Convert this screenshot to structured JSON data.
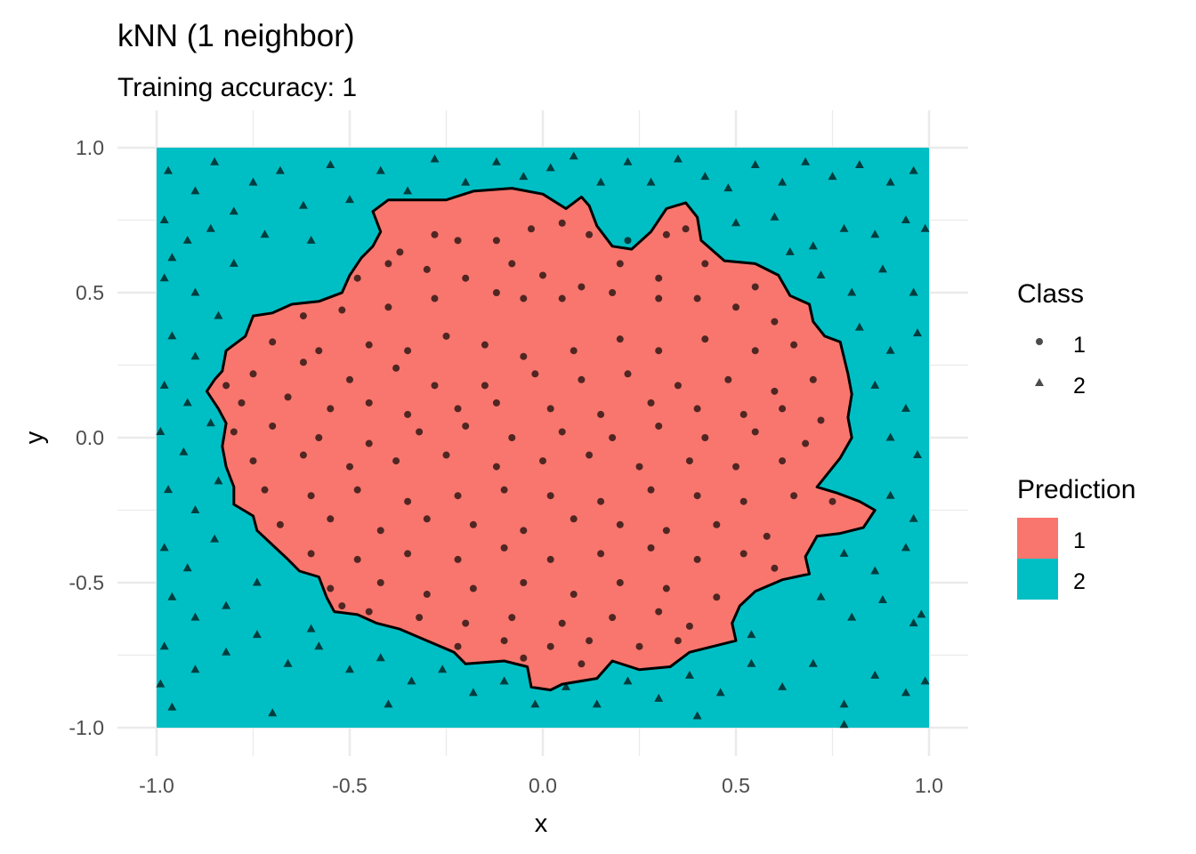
{
  "chart_data": {
    "type": "scatter",
    "title": "kNN (1 neighbor)",
    "subtitle": "Training accuracy: 1",
    "xlabel": "x",
    "ylabel": "y",
    "xlim": [
      -1.0,
      1.0
    ],
    "ylim": [
      -1.0,
      1.0
    ],
    "x_ticks": [
      "-1.0",
      "-0.5",
      "0.0",
      "0.5",
      "1.0"
    ],
    "y_ticks": [
      "-1.0",
      "-0.5",
      "0.0",
      "0.5",
      "1.0"
    ],
    "grid": true,
    "legend_position": "right",
    "colors": {
      "prediction_1": "#F8766D",
      "prediction_2": "#00BFC4",
      "points": "#000000",
      "grid": "#ebebeb"
    },
    "legend": {
      "class": {
        "title": "Class",
        "items": [
          {
            "label": "1",
            "shape": "circle"
          },
          {
            "label": "2",
            "shape": "triangle"
          }
        ]
      },
      "prediction": {
        "title": "Prediction",
        "items": [
          {
            "label": "1",
            "color": "#F8766D"
          },
          {
            "label": "2",
            "color": "#00BFC4"
          }
        ]
      }
    },
    "decision_boundary_class1": [
      [
        -0.44,
        0.78
      ],
      [
        -0.4,
        0.82
      ],
      [
        -0.33,
        0.82
      ],
      [
        -0.25,
        0.82
      ],
      [
        -0.18,
        0.85
      ],
      [
        -0.08,
        0.86
      ],
      [
        0.0,
        0.84
      ],
      [
        0.06,
        0.79
      ],
      [
        0.1,
        0.83
      ],
      [
        0.12,
        0.8
      ],
      [
        0.14,
        0.73
      ],
      [
        0.18,
        0.66
      ],
      [
        0.23,
        0.65
      ],
      [
        0.28,
        0.71
      ],
      [
        0.32,
        0.79
      ],
      [
        0.37,
        0.81
      ],
      [
        0.4,
        0.76
      ],
      [
        0.41,
        0.68
      ],
      [
        0.47,
        0.61
      ],
      [
        0.55,
        0.6
      ],
      [
        0.61,
        0.56
      ],
      [
        0.64,
        0.49
      ],
      [
        0.69,
        0.46
      ],
      [
        0.7,
        0.4
      ],
      [
        0.73,
        0.35
      ],
      [
        0.77,
        0.33
      ],
      [
        0.79,
        0.22
      ],
      [
        0.8,
        0.15
      ],
      [
        0.79,
        0.07
      ],
      [
        0.8,
        0.0
      ],
      [
        0.77,
        -0.07
      ],
      [
        0.71,
        -0.17
      ],
      [
        0.76,
        -0.19
      ],
      [
        0.82,
        -0.22
      ],
      [
        0.86,
        -0.25
      ],
      [
        0.83,
        -0.31
      ],
      [
        0.77,
        -0.33
      ],
      [
        0.71,
        -0.34
      ],
      [
        0.68,
        -0.41
      ],
      [
        0.69,
        -0.47
      ],
      [
        0.62,
        -0.49
      ],
      [
        0.55,
        -0.53
      ],
      [
        0.51,
        -0.58
      ],
      [
        0.49,
        -0.64
      ],
      [
        0.5,
        -0.7
      ],
      [
        0.44,
        -0.72
      ],
      [
        0.38,
        -0.74
      ],
      [
        0.33,
        -0.79
      ],
      [
        0.25,
        -0.8
      ],
      [
        0.18,
        -0.77
      ],
      [
        0.14,
        -0.83
      ],
      [
        0.05,
        -0.85
      ],
      [
        0.02,
        -0.87
      ],
      [
        -0.03,
        -0.86
      ],
      [
        -0.04,
        -0.79
      ],
      [
        -0.1,
        -0.77
      ],
      [
        -0.2,
        -0.78
      ],
      [
        -0.23,
        -0.74
      ],
      [
        -0.3,
        -0.7
      ],
      [
        -0.37,
        -0.66
      ],
      [
        -0.43,
        -0.64
      ],
      [
        -0.48,
        -0.61
      ],
      [
        -0.54,
        -0.6
      ],
      [
        -0.56,
        -0.55
      ],
      [
        -0.58,
        -0.48
      ],
      [
        -0.63,
        -0.46
      ],
      [
        -0.66,
        -0.42
      ],
      [
        -0.7,
        -0.37
      ],
      [
        -0.74,
        -0.32
      ],
      [
        -0.75,
        -0.27
      ],
      [
        -0.8,
        -0.23
      ],
      [
        -0.8,
        -0.17
      ],
      [
        -0.82,
        -0.1
      ],
      [
        -0.83,
        -0.03
      ],
      [
        -0.82,
        0.05
      ],
      [
        -0.84,
        0.1
      ],
      [
        -0.87,
        0.16
      ],
      [
        -0.85,
        0.2
      ],
      [
        -0.83,
        0.23
      ],
      [
        -0.82,
        0.3
      ],
      [
        -0.77,
        0.35
      ],
      [
        -0.75,
        0.42
      ],
      [
        -0.7,
        0.43
      ],
      [
        -0.65,
        0.46
      ],
      [
        -0.58,
        0.47
      ],
      [
        -0.52,
        0.5
      ],
      [
        -0.5,
        0.56
      ],
      [
        -0.47,
        0.62
      ],
      [
        -0.44,
        0.66
      ],
      [
        -0.42,
        0.71
      ]
    ],
    "points_class_1": [
      [
        -0.37,
        0.64
      ],
      [
        -0.28,
        0.7
      ],
      [
        -0.22,
        0.68
      ],
      [
        -0.12,
        0.68
      ],
      [
        -0.03,
        0.72
      ],
      [
        0.05,
        0.74
      ],
      [
        0.12,
        0.7
      ],
      [
        0.22,
        0.68
      ],
      [
        0.32,
        0.7
      ],
      [
        0.37,
        0.72
      ],
      [
        -0.48,
        0.55
      ],
      [
        -0.4,
        0.6
      ],
      [
        -0.3,
        0.58
      ],
      [
        -0.2,
        0.55
      ],
      [
        -0.08,
        0.6
      ],
      [
        0.0,
        0.56
      ],
      [
        0.1,
        0.52
      ],
      [
        0.2,
        0.6
      ],
      [
        0.3,
        0.55
      ],
      [
        0.42,
        0.6
      ],
      [
        0.55,
        0.52
      ],
      [
        -0.62,
        0.42
      ],
      [
        -0.52,
        0.44
      ],
      [
        -0.4,
        0.45
      ],
      [
        -0.28,
        0.48
      ],
      [
        -0.12,
        0.5
      ],
      [
        -0.05,
        0.48
      ],
      [
        0.05,
        0.48
      ],
      [
        0.18,
        0.5
      ],
      [
        0.3,
        0.48
      ],
      [
        0.4,
        0.48
      ],
      [
        0.5,
        0.45
      ],
      [
        0.6,
        0.4
      ],
      [
        -0.7,
        0.33
      ],
      [
        -0.58,
        0.3
      ],
      [
        -0.45,
        0.32
      ],
      [
        -0.35,
        0.3
      ],
      [
        -0.25,
        0.35
      ],
      [
        -0.15,
        0.32
      ],
      [
        -0.05,
        0.28
      ],
      [
        0.08,
        0.3
      ],
      [
        0.2,
        0.34
      ],
      [
        0.3,
        0.3
      ],
      [
        0.42,
        0.34
      ],
      [
        0.55,
        0.3
      ],
      [
        0.65,
        0.32
      ],
      [
        -0.75,
        0.22
      ],
      [
        -0.62,
        0.26
      ],
      [
        -0.5,
        0.2
      ],
      [
        -0.38,
        0.24
      ],
      [
        -0.28,
        0.18
      ],
      [
        -0.15,
        0.18
      ],
      [
        -0.02,
        0.22
      ],
      [
        0.1,
        0.2
      ],
      [
        0.22,
        0.22
      ],
      [
        0.35,
        0.18
      ],
      [
        0.48,
        0.2
      ],
      [
        0.6,
        0.16
      ],
      [
        0.7,
        0.2
      ],
      [
        -0.78,
        0.12
      ],
      [
        -0.66,
        0.14
      ],
      [
        -0.55,
        0.1
      ],
      [
        -0.45,
        0.12
      ],
      [
        -0.35,
        0.08
      ],
      [
        -0.22,
        0.1
      ],
      [
        -0.12,
        0.12
      ],
      [
        0.02,
        0.1
      ],
      [
        0.15,
        0.08
      ],
      [
        0.28,
        0.12
      ],
      [
        0.4,
        0.1
      ],
      [
        0.52,
        0.08
      ],
      [
        0.62,
        0.1
      ],
      [
        0.72,
        0.06
      ],
      [
        -0.8,
        0.02
      ],
      [
        -0.7,
        0.04
      ],
      [
        -0.58,
        0.0
      ],
      [
        -0.45,
        -0.02
      ],
      [
        -0.32,
        0.02
      ],
      [
        -0.2,
        0.04
      ],
      [
        -0.08,
        0.0
      ],
      [
        0.05,
        0.02
      ],
      [
        0.18,
        0.0
      ],
      [
        0.3,
        0.04
      ],
      [
        0.42,
        0.0
      ],
      [
        0.55,
        0.02
      ],
      [
        0.68,
        -0.02
      ],
      [
        -0.75,
        -0.08
      ],
      [
        -0.62,
        -0.06
      ],
      [
        -0.5,
        -0.1
      ],
      [
        -0.38,
        -0.08
      ],
      [
        -0.25,
        -0.06
      ],
      [
        -0.12,
        -0.1
      ],
      [
        0.0,
        -0.08
      ],
      [
        0.12,
        -0.06
      ],
      [
        0.25,
        -0.1
      ],
      [
        0.38,
        -0.08
      ],
      [
        0.5,
        -0.1
      ],
      [
        0.62,
        -0.08
      ],
      [
        -0.72,
        -0.18
      ],
      [
        -0.6,
        -0.2
      ],
      [
        -0.48,
        -0.18
      ],
      [
        -0.35,
        -0.22
      ],
      [
        -0.22,
        -0.2
      ],
      [
        -0.1,
        -0.18
      ],
      [
        0.02,
        -0.2
      ],
      [
        0.15,
        -0.22
      ],
      [
        0.28,
        -0.18
      ],
      [
        0.4,
        -0.2
      ],
      [
        0.52,
        -0.22
      ],
      [
        0.65,
        -0.2
      ],
      [
        -0.68,
        -0.3
      ],
      [
        -0.55,
        -0.28
      ],
      [
        -0.42,
        -0.32
      ],
      [
        -0.3,
        -0.28
      ],
      [
        -0.18,
        -0.3
      ],
      [
        -0.05,
        -0.32
      ],
      [
        0.08,
        -0.28
      ],
      [
        0.2,
        -0.3
      ],
      [
        0.32,
        -0.32
      ],
      [
        0.45,
        -0.3
      ],
      [
        0.58,
        -0.34
      ],
      [
        -0.6,
        -0.4
      ],
      [
        -0.48,
        -0.42
      ],
      [
        -0.35,
        -0.4
      ],
      [
        -0.22,
        -0.42
      ],
      [
        -0.1,
        -0.38
      ],
      [
        0.02,
        -0.42
      ],
      [
        0.15,
        -0.4
      ],
      [
        0.28,
        -0.38
      ],
      [
        0.4,
        -0.42
      ],
      [
        0.52,
        -0.4
      ],
      [
        -0.55,
        -0.52
      ],
      [
        -0.42,
        -0.5
      ],
      [
        -0.3,
        -0.54
      ],
      [
        -0.18,
        -0.52
      ],
      [
        -0.05,
        -0.5
      ],
      [
        0.08,
        -0.54
      ],
      [
        0.2,
        -0.5
      ],
      [
        0.32,
        -0.52
      ],
      [
        0.45,
        -0.55
      ],
      [
        -0.45,
        -0.6
      ],
      [
        -0.32,
        -0.62
      ],
      [
        -0.2,
        -0.64
      ],
      [
        -0.08,
        -0.62
      ],
      [
        0.05,
        -0.64
      ],
      [
        0.18,
        -0.62
      ],
      [
        0.3,
        -0.6
      ],
      [
        0.38,
        -0.65
      ],
      [
        -0.22,
        -0.72
      ],
      [
        -0.1,
        -0.7
      ],
      [
        0.02,
        -0.72
      ],
      [
        0.12,
        -0.7
      ],
      [
        0.25,
        -0.72
      ],
      [
        0.35,
        -0.7
      ],
      [
        -0.52,
        -0.58
      ],
      [
        0.6,
        -0.45
      ],
      [
        0.75,
        -0.22
      ],
      [
        -0.82,
        0.18
      ],
      [
        -0.05,
        -0.76
      ],
      [
        0.1,
        -0.78
      ]
    ],
    "points_class_2": [
      [
        -0.97,
        0.92
      ],
      [
        -0.9,
        0.85
      ],
      [
        -0.85,
        0.95
      ],
      [
        -0.8,
        0.78
      ],
      [
        -0.75,
        0.88
      ],
      [
        -0.68,
        0.92
      ],
      [
        -0.62,
        0.8
      ],
      [
        -0.55,
        0.94
      ],
      [
        -0.5,
        0.82
      ],
      [
        -0.42,
        0.92
      ],
      [
        -0.35,
        0.85
      ],
      [
        -0.28,
        0.96
      ],
      [
        -0.2,
        0.88
      ],
      [
        -0.12,
        0.95
      ],
      [
        -0.05,
        0.9
      ],
      [
        0.02,
        0.93
      ],
      [
        0.08,
        0.97
      ],
      [
        0.15,
        0.88
      ],
      [
        0.22,
        0.95
      ],
      [
        0.28,
        0.88
      ],
      [
        0.35,
        0.96
      ],
      [
        0.42,
        0.9
      ],
      [
        0.48,
        0.86
      ],
      [
        0.55,
        0.94
      ],
      [
        0.62,
        0.88
      ],
      [
        0.68,
        0.95
      ],
      [
        0.75,
        0.9
      ],
      [
        0.82,
        0.94
      ],
      [
        0.9,
        0.88
      ],
      [
        0.96,
        0.92
      ],
      [
        -0.98,
        0.75
      ],
      [
        -0.92,
        0.68
      ],
      [
        -0.86,
        0.72
      ],
      [
        -0.8,
        0.6
      ],
      [
        -0.72,
        0.7
      ],
      [
        -0.6,
        0.68
      ],
      [
        0.5,
        0.74
      ],
      [
        0.6,
        0.76
      ],
      [
        0.7,
        0.66
      ],
      [
        0.78,
        0.72
      ],
      [
        0.86,
        0.7
      ],
      [
        0.94,
        0.75
      ],
      [
        -0.98,
        0.55
      ],
      [
        -0.9,
        0.5
      ],
      [
        -0.84,
        0.42
      ],
      [
        0.72,
        0.56
      ],
      [
        0.8,
        0.5
      ],
      [
        0.88,
        0.58
      ],
      [
        0.96,
        0.5
      ],
      [
        -0.96,
        0.35
      ],
      [
        -0.9,
        0.28
      ],
      [
        0.82,
        0.38
      ],
      [
        0.9,
        0.3
      ],
      [
        0.97,
        0.36
      ],
      [
        -0.98,
        0.18
      ],
      [
        -0.92,
        0.12
      ],
      [
        0.86,
        0.18
      ],
      [
        0.94,
        0.1
      ],
      [
        -0.99,
        0.02
      ],
      [
        -0.93,
        -0.05
      ],
      [
        0.9,
        0.0
      ],
      [
        0.97,
        -0.06
      ],
      [
        -0.97,
        -0.18
      ],
      [
        -0.9,
        -0.25
      ],
      [
        -0.84,
        -0.15
      ],
      [
        0.9,
        -0.2
      ],
      [
        0.96,
        -0.28
      ],
      [
        -0.98,
        -0.38
      ],
      [
        -0.92,
        -0.45
      ],
      [
        -0.85,
        -0.35
      ],
      [
        0.78,
        -0.4
      ],
      [
        0.86,
        -0.46
      ],
      [
        0.94,
        -0.38
      ],
      [
        -0.96,
        -0.55
      ],
      [
        -0.9,
        -0.62
      ],
      [
        -0.82,
        -0.58
      ],
      [
        -0.74,
        -0.5
      ],
      [
        0.72,
        -0.55
      ],
      [
        0.8,
        -0.62
      ],
      [
        0.88,
        -0.56
      ],
      [
        0.96,
        -0.64
      ],
      [
        -0.98,
        -0.72
      ],
      [
        -0.9,
        -0.8
      ],
      [
        -0.82,
        -0.74
      ],
      [
        -0.74,
        -0.68
      ],
      [
        -0.66,
        -0.78
      ],
      [
        -0.58,
        -0.72
      ],
      [
        -0.5,
        -0.8
      ],
      [
        -0.42,
        -0.76
      ],
      [
        -0.34,
        -0.84
      ],
      [
        -0.26,
        -0.8
      ],
      [
        -0.18,
        -0.88
      ],
      [
        -0.1,
        -0.84
      ],
      [
        -0.02,
        -0.92
      ],
      [
        0.06,
        -0.86
      ],
      [
        0.14,
        -0.92
      ],
      [
        0.22,
        -0.84
      ],
      [
        0.3,
        -0.9
      ],
      [
        0.38,
        -0.82
      ],
      [
        0.46,
        -0.88
      ],
      [
        0.54,
        -0.78
      ],
      [
        0.62,
        -0.86
      ],
      [
        0.7,
        -0.78
      ],
      [
        0.78,
        -0.92
      ],
      [
        0.86,
        -0.82
      ],
      [
        0.94,
        -0.88
      ],
      [
        -0.96,
        -0.93
      ],
      [
        -0.7,
        -0.95
      ],
      [
        -0.4,
        -0.92
      ],
      [
        0.4,
        -0.96
      ],
      [
        0.78,
        -0.99
      ],
      [
        0.99,
        -0.84
      ],
      [
        -0.99,
        -0.85
      ],
      [
        0.54,
        -0.68
      ],
      [
        -0.6,
        -0.66
      ],
      [
        0.99,
        0.72
      ],
      [
        -0.96,
        0.62
      ],
      [
        0.64,
        0.64
      ],
      [
        -0.86,
        0.05
      ],
      [
        0.98,
        -0.61
      ]
    ]
  }
}
